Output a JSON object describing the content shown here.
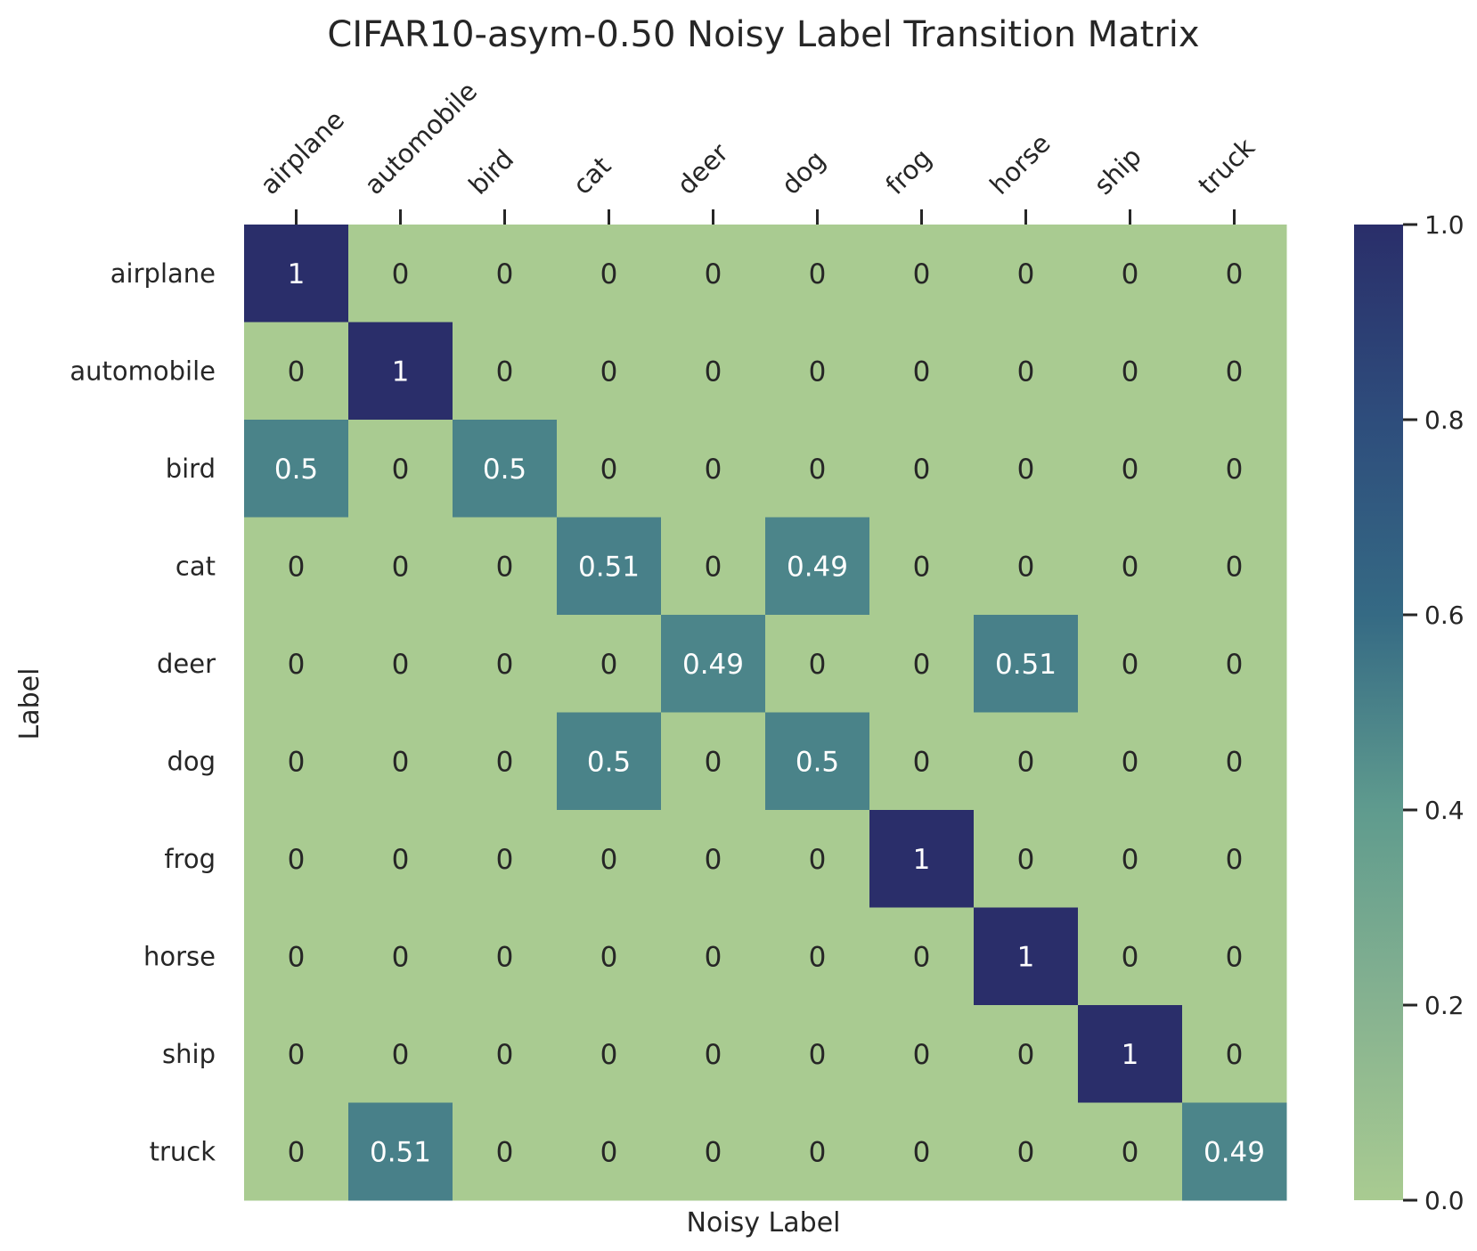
{
  "chart_data": {
    "type": "heatmap",
    "title": "CIFAR10-asym-0.50 Noisy Label Transition Matrix",
    "xlabel": "Noisy Label",
    "ylabel": "Label",
    "x_categories": [
      "airplane",
      "automobile",
      "bird",
      "cat",
      "deer",
      "dog",
      "frog",
      "horse",
      "ship",
      "truck"
    ],
    "y_categories": [
      "airplane",
      "automobile",
      "bird",
      "cat",
      "deer",
      "dog",
      "frog",
      "horse",
      "ship",
      "truck"
    ],
    "values": [
      [
        1,
        0,
        0,
        0,
        0,
        0,
        0,
        0,
        0,
        0
      ],
      [
        0,
        1,
        0,
        0,
        0,
        0,
        0,
        0,
        0,
        0
      ],
      [
        0.5,
        0,
        0.5,
        0,
        0,
        0,
        0,
        0,
        0,
        0
      ],
      [
        0,
        0,
        0,
        0.51,
        0,
        0.49,
        0,
        0,
        0,
        0
      ],
      [
        0,
        0,
        0,
        0,
        0.49,
        0,
        0,
        0.51,
        0,
        0
      ],
      [
        0,
        0,
        0,
        0.5,
        0,
        0.5,
        0,
        0,
        0,
        0
      ],
      [
        0,
        0,
        0,
        0,
        0,
        0,
        1,
        0,
        0,
        0
      ],
      [
        0,
        0,
        0,
        0,
        0,
        0,
        0,
        1,
        0,
        0
      ],
      [
        0,
        0,
        0,
        0,
        0,
        0,
        0,
        0,
        1,
        0
      ],
      [
        0,
        0.51,
        0,
        0,
        0,
        0,
        0,
        0,
        0,
        0.49
      ]
    ],
    "cell_labels": [
      [
        "1",
        "0",
        "0",
        "0",
        "0",
        "0",
        "0",
        "0",
        "0",
        "0"
      ],
      [
        "0",
        "1",
        "0",
        "0",
        "0",
        "0",
        "0",
        "0",
        "0",
        "0"
      ],
      [
        "0.5",
        "0",
        "0.5",
        "0",
        "0",
        "0",
        "0",
        "0",
        "0",
        "0"
      ],
      [
        "0",
        "0",
        "0",
        "0.51",
        "0",
        "0.49",
        "0",
        "0",
        "0",
        "0"
      ],
      [
        "0",
        "0",
        "0",
        "0",
        "0.49",
        "0",
        "0",
        "0.51",
        "0",
        "0"
      ],
      [
        "0",
        "0",
        "0",
        "0.5",
        "0",
        "0.5",
        "0",
        "0",
        "0",
        "0"
      ],
      [
        "0",
        "0",
        "0",
        "0",
        "0",
        "0",
        "1",
        "0",
        "0",
        "0"
      ],
      [
        "0",
        "0",
        "0",
        "0",
        "0",
        "0",
        "0",
        "1",
        "0",
        "0"
      ],
      [
        "0",
        "0",
        "0",
        "0",
        "0",
        "0",
        "0",
        "0",
        "1",
        "0"
      ],
      [
        "0",
        "0.51",
        "0",
        "0",
        "0",
        "0",
        "0",
        "0",
        "0",
        "0.49"
      ]
    ],
    "colorbar": {
      "range": [
        0,
        1
      ],
      "ticks": [
        0.0,
        0.2,
        0.4,
        0.6,
        0.8,
        1.0
      ],
      "tick_labels": [
        "0.0",
        "0.2",
        "0.4",
        "0.6",
        "0.8",
        "1.0"
      ],
      "colormap_stops": [
        {
          "value": 0.0,
          "color": "#a9cb91"
        },
        {
          "value": 0.2,
          "color": "#86b290"
        },
        {
          "value": 0.4,
          "color": "#5f9b8e"
        },
        {
          "value": 0.6,
          "color": "#356a84"
        },
        {
          "value": 0.8,
          "color": "#2e4d7c"
        },
        {
          "value": 1.0,
          "color": "#2a2e6a"
        }
      ]
    },
    "x_axis_position": "top",
    "grid": false,
    "legend": "colorbar-right"
  }
}
